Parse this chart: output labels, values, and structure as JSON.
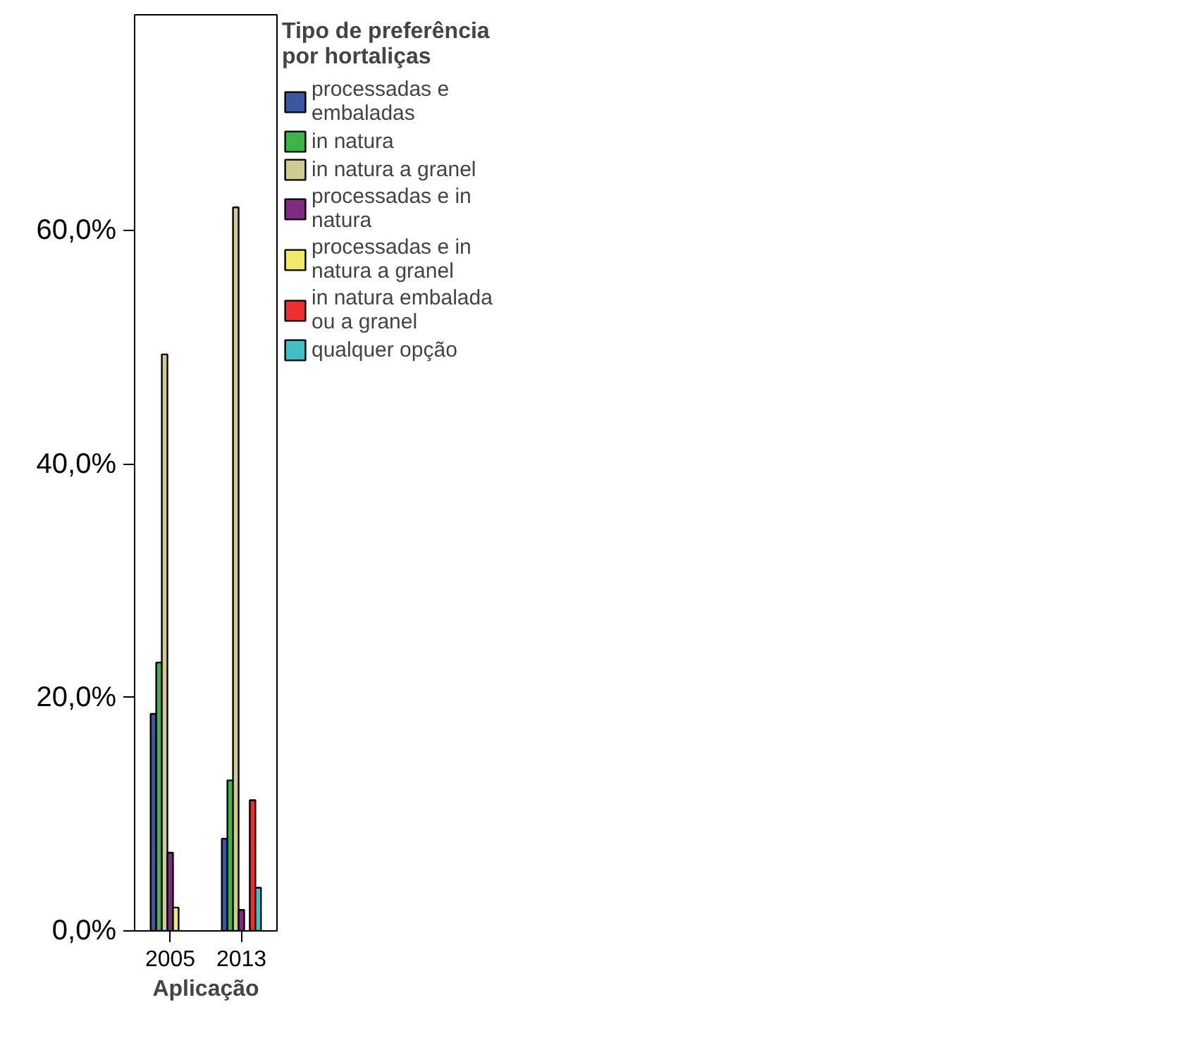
{
  "chart_data": {
    "type": "bar",
    "xlabel": "Aplicação",
    "legend_title": "Tipo de preferência por hortaliças",
    "legend": "right",
    "categories": [
      "2005",
      "2013"
    ],
    "series": [
      {
        "name": "processadas e embaladas",
        "color": "#3b57a0",
        "values": [
          18.6,
          7.9
        ]
      },
      {
        "name": "in natura",
        "color": "#3cb44a",
        "values": [
          23.0,
          12.9
        ]
      },
      {
        "name": "in natura a granel",
        "color": "#d0cb93",
        "values": [
          49.4,
          62.0
        ]
      },
      {
        "name": "processadas e in natura",
        "color": "#7e2b80",
        "values": [
          6.7,
          1.8
        ]
      },
      {
        "name": "processadas e in natura a granel",
        "color": "#f0e96a",
        "values": [
          2.0,
          null
        ]
      },
      {
        "name": "in natura embalada ou a granel",
        "color": "#ee2e30",
        "values": [
          null,
          11.2
        ]
      },
      {
        "name": "qualquer opção",
        "color": "#40bfc6",
        "values": [
          null,
          3.7
        ]
      }
    ],
    "ylim": [
      0,
      78.5
    ],
    "yticks": [
      {
        "value": 0,
        "label": "0,0%"
      },
      {
        "value": 20,
        "label": "20,0%"
      },
      {
        "value": 40,
        "label": "40,0%"
      },
      {
        "value": 60,
        "label": "60,0%"
      }
    ],
    "grid": false
  }
}
